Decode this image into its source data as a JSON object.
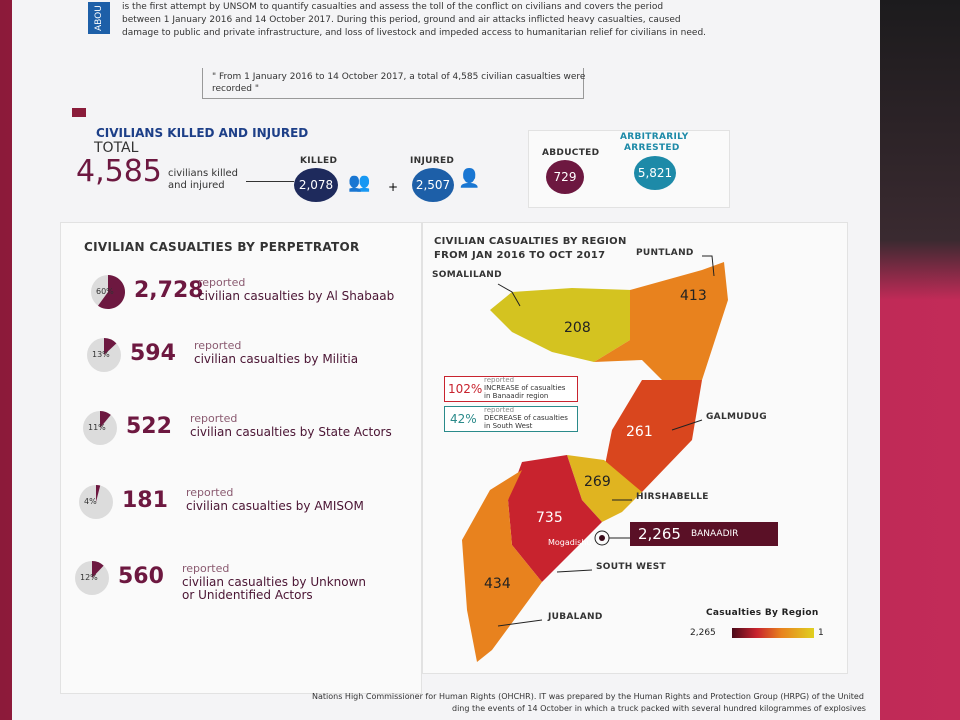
{
  "intro": {
    "tab": "ABOU",
    "lines": [
      "is the first attempt by UNSOM to quantify casualties and assess the toll of the conflict on civilians and covers the period",
      "between 1 January 2016 and 14 October 2017. During this period, ground and air attacks inflicted heavy casualties, caused",
      "damage to public and private infrastructure, and loss of livestock and impeded access to humanitarian relief for civilians in need."
    ],
    "quote": [
      "\" From 1 January 2016 to 14 October 2017, a total of 4,585 civilian casualties were",
      "recorded \""
    ]
  },
  "summary": {
    "title": "CIVILIANS KILLED AND INJURED",
    "total_label": "TOTAL",
    "total": "4,585",
    "total_desc": [
      "civilians killed",
      "and injured"
    ],
    "killed_label": "KILLED",
    "killed": "2,078",
    "plus": "+",
    "injured_label": "INJURED",
    "injured": "2,507",
    "abducted_label": "ABDUCTED",
    "abducted": "729",
    "arrested_label": [
      "ARBITRARILY",
      "ARRESTED"
    ],
    "arrested": "5,821"
  },
  "perpetrators": {
    "title": "CIVILIAN CASUALTIES BY PERPETRATOR",
    "items": [
      {
        "share": 60,
        "share_label": "60%",
        "count": "2,728",
        "reported": "reported",
        "desc": [
          "civilian casualties by Al Shabaab"
        ]
      },
      {
        "share": 13,
        "share_label": "13%",
        "count": "594",
        "reported": "reported",
        "desc": [
          "civilian casualties by Militia"
        ]
      },
      {
        "share": 11,
        "share_label": "11%",
        "count": "522",
        "reported": "reported",
        "desc": [
          "civilian casualties by State Actors"
        ]
      },
      {
        "share": 4,
        "share_label": "4%",
        "count": "181",
        "reported": "reported",
        "desc": [
          "civilian casualties by AMISOM"
        ]
      },
      {
        "share": 12,
        "share_label": "12%",
        "count": "560",
        "reported": "reported",
        "desc": [
          "civilian casualties by Unknown",
          "or Unidentified Actors"
        ]
      }
    ]
  },
  "map": {
    "title": [
      "CIVILIAN CASUALTIES BY REGION",
      "FROM JAN 2016 TO OCT 2017"
    ],
    "regions": [
      {
        "name": "SOMALILAND",
        "value": "208"
      },
      {
        "name": "PUNTLAND",
        "value": "413"
      },
      {
        "name": "GALMUDUG",
        "value": "261"
      },
      {
        "name": "HIRSHABELLE",
        "value": "269"
      },
      {
        "name": "SOUTH WEST",
        "value": "735"
      },
      {
        "name": "JUBALAND",
        "value": "434"
      },
      {
        "name": "BANAADIR",
        "value": "2,265"
      }
    ],
    "city": "Mogadishu",
    "notes": [
      {
        "pct": "102%",
        "reported": "reported",
        "text": [
          "INCREASE of casualties",
          "in Banaadir region"
        ]
      },
      {
        "pct": "42%",
        "reported": "reported",
        "text": [
          "DECREASE of casualties",
          "in South West"
        ]
      }
    ],
    "legend": {
      "title": "Casualties By Region",
      "max": "2,265",
      "min": "1"
    }
  },
  "footer": {
    "lines": [
      "Nations High Commissioner for Human Rights (OHCHR). IT was prepared by the Human Rights and Protection Group (HRPG) of the United",
      "ding the events of 14 October in which a truck packed with several hundred kilogrammes of explosives"
    ]
  }
}
